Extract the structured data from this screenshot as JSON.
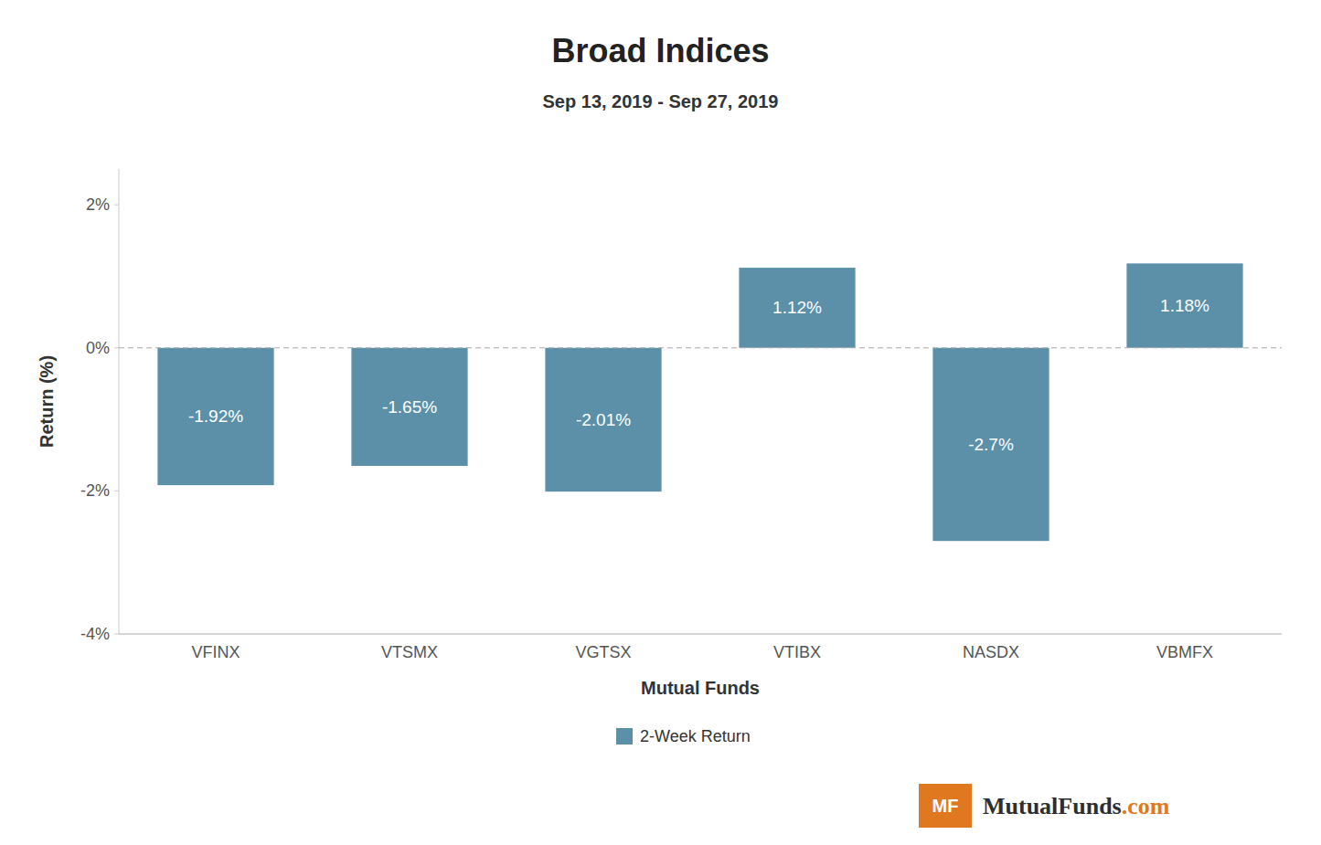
{
  "chart_data": {
    "type": "bar",
    "title": "Broad Indices",
    "subtitle": "Sep 13, 2019 - Sep 27, 2019",
    "xlabel": "Mutual Funds",
    "ylabel": "Return (%)",
    "categories": [
      "VFINX",
      "VTSMX",
      "VGTSX",
      "VTIBX",
      "NASDX",
      "VBMFX"
    ],
    "series": [
      {
        "name": "2-Week Return",
        "color": "#5b90a8",
        "values": [
          -1.92,
          -1.65,
          -2.01,
          1.12,
          -2.7,
          1.18
        ],
        "value_labels": [
          "-1.92%",
          "-1.65%",
          "-2.01%",
          "1.12%",
          "-2.7%",
          "1.18%"
        ]
      }
    ],
    "ylim": [
      -4.0,
      2.5
    ],
    "yticks": [
      {
        "value": -4,
        "label": "-4%"
      },
      {
        "value": -2,
        "label": "-2%"
      },
      {
        "value": 0,
        "label": "0%"
      },
      {
        "value": 2,
        "label": "2%"
      }
    ],
    "data_labels": true,
    "grid": false,
    "legend": "bottom",
    "annotations": [
      "MF",
      "MutualFunds",
      ".com"
    ]
  }
}
